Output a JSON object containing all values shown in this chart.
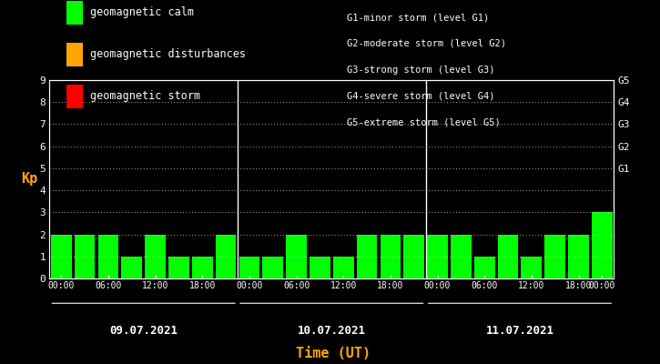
{
  "background_color": "#000000",
  "bar_color_calm": "#00ff00",
  "bar_color_disturbance": "#ffa500",
  "bar_color_storm": "#ff0000",
  "text_color": "#ffffff",
  "orange_color": "#ffa500",
  "days": [
    "09.07.2021",
    "10.07.2021",
    "11.07.2021"
  ],
  "kp_values": [
    2,
    2,
    2,
    1,
    2,
    1,
    1,
    2,
    1,
    1,
    2,
    1,
    1,
    2,
    2,
    2,
    2,
    2,
    1,
    2,
    1,
    2,
    2,
    3
  ],
  "ylim": [
    0,
    9
  ],
  "yticks": [
    0,
    1,
    2,
    3,
    4,
    5,
    6,
    7,
    8,
    9
  ],
  "g_labels": [
    "G1",
    "G2",
    "G3",
    "G4",
    "G5"
  ],
  "g_levels": [
    5,
    6,
    7,
    8,
    9
  ],
  "legend_items": [
    {
      "label": "geomagnetic calm",
      "color": "#00ff00"
    },
    {
      "label": "geomagnetic disturbances",
      "color": "#ffa500"
    },
    {
      "label": "geomagnetic storm",
      "color": "#ff0000"
    }
  ],
  "legend2_lines": [
    "G1-minor storm (level G1)",
    "G2-moderate storm (level G2)",
    "G3-strong storm (level G3)",
    "G4-severe storm (level G4)",
    "G5-extreme storm (level G5)"
  ],
  "ylabel": "Kp",
  "xlabel": "Time (UT)",
  "calm_max": 3,
  "disturbance_max": 4,
  "num_days": 3,
  "bars_per_day": 8,
  "xtick_labels": [
    "00:00",
    "06:00",
    "12:00",
    "18:00"
  ]
}
